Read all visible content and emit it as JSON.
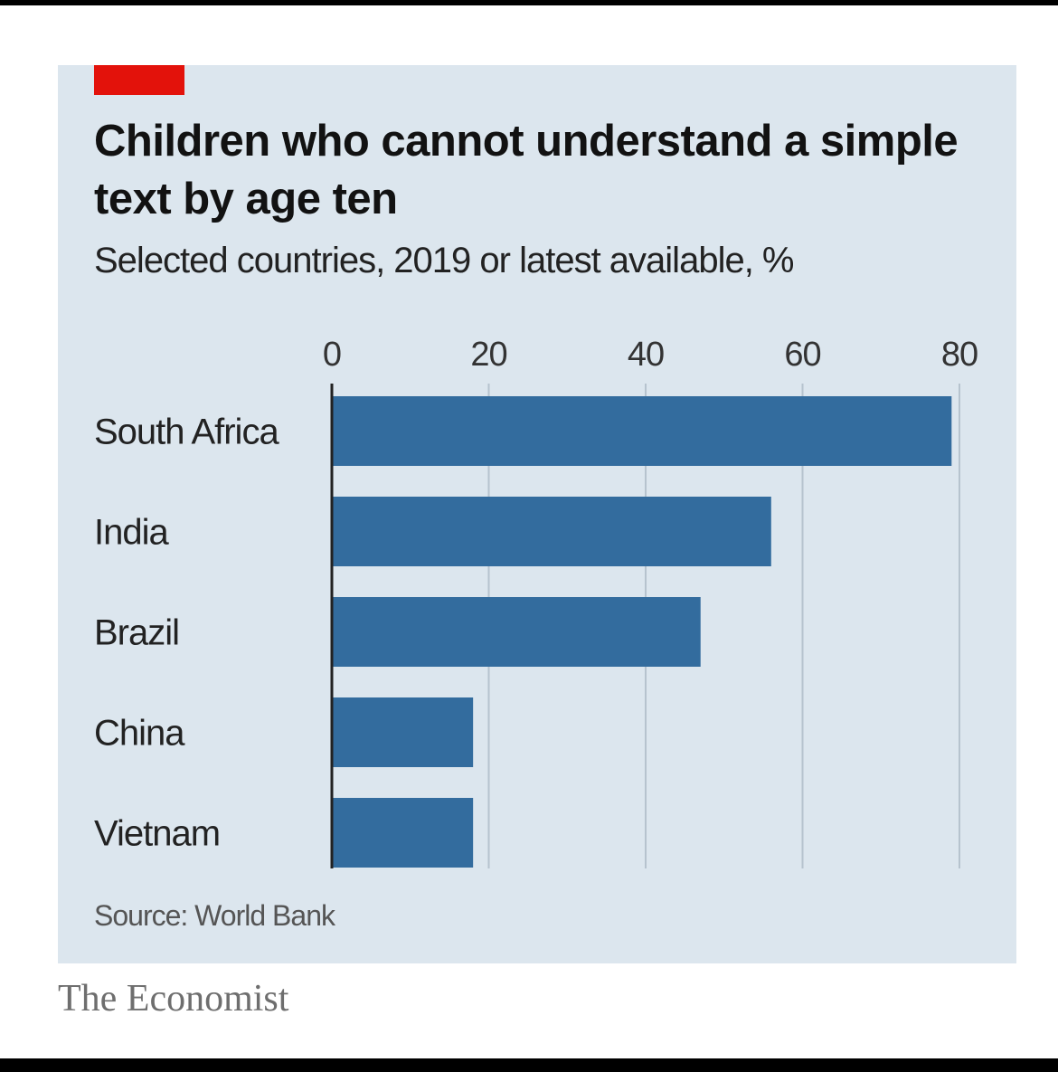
{
  "chart_data": {
    "type": "bar",
    "orientation": "horizontal",
    "title": "Children who cannot understand a simple text by age ten",
    "subtitle": "Selected countries, 2019 or latest available, %",
    "categories": [
      "South Africa",
      "India",
      "Brazil",
      "China",
      "Vietnam"
    ],
    "values": [
      79,
      56,
      47,
      18,
      18
    ],
    "xlim": [
      0,
      80
    ],
    "xticks": [
      0,
      20,
      40,
      60,
      80
    ],
    "grid": true,
    "source": "Source: World Bank"
  },
  "colors": {
    "bar": "#336c9e",
    "panel_background": "#dce6ee",
    "accent": "#e3120b",
    "gridline": "#b6c3ce"
  },
  "brand": "The Economist"
}
